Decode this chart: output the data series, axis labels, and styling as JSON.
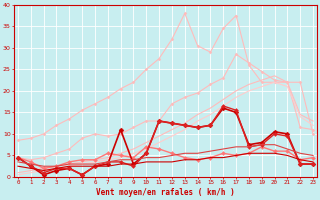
{
  "x": [
    0,
    1,
    2,
    3,
    4,
    5,
    6,
    7,
    8,
    9,
    10,
    11,
    12,
    13,
    14,
    15,
    16,
    17,
    18,
    19,
    20,
    21,
    22,
    23
  ],
  "background_color": "#c8eef0",
  "grid_color": "#ffffff",
  "xlabel": "Vent moyen/en rafales ( km/h )",
  "xlabel_color": "#cc0000",
  "tick_color": "#cc0000",
  "series": [
    {
      "name": "upper_envelope",
      "color": "#ffbbbb",
      "linewidth": 0.8,
      "marker": "D",
      "markersize": 1.5,
      "values": [
        8.5,
        9.0,
        10.0,
        12.0,
        13.5,
        15.5,
        17.0,
        18.5,
        20.5,
        22.0,
        25.0,
        27.5,
        32.0,
        38.0,
        30.5,
        29.0,
        34.5,
        37.5,
        26.0,
        22.0,
        22.0,
        22.0,
        11.5,
        11.0
      ]
    },
    {
      "name": "upper_mid",
      "color": "#ffbbbb",
      "linewidth": 0.8,
      "marker": "D",
      "markersize": 1.5,
      "values": [
        4.5,
        4.0,
        4.5,
        5.5,
        6.5,
        9.0,
        10.0,
        9.5,
        10.0,
        11.5,
        13.0,
        13.0,
        17.0,
        18.5,
        19.5,
        21.5,
        23.0,
        28.5,
        26.5,
        24.5,
        22.5,
        22.0,
        22.0,
        10.0
      ]
    },
    {
      "name": "lower_diag1",
      "color": "#ffbbbb",
      "linewidth": 0.8,
      "marker": null,
      "markersize": 0,
      "values": [
        1.0,
        1.5,
        2.0,
        2.5,
        3.0,
        3.5,
        4.0,
        4.5,
        5.5,
        6.5,
        8.0,
        9.5,
        11.0,
        12.5,
        14.5,
        16.0,
        18.0,
        20.0,
        21.5,
        22.5,
        23.5,
        22.0,
        14.5,
        13.0
      ]
    },
    {
      "name": "lower_diag2",
      "color": "#ffcccc",
      "linewidth": 0.8,
      "marker": null,
      "markersize": 0,
      "values": [
        0.5,
        1.0,
        1.5,
        2.0,
        2.5,
        3.0,
        3.5,
        4.0,
        4.5,
        5.5,
        6.5,
        8.0,
        9.5,
        11.0,
        13.0,
        14.5,
        16.5,
        18.5,
        20.0,
        21.0,
        22.0,
        21.0,
        14.0,
        12.0
      ]
    },
    {
      "name": "mid_red",
      "color": "#ff7777",
      "linewidth": 1.0,
      "marker": "D",
      "markersize": 2.0,
      "values": [
        4.5,
        3.5,
        2.0,
        2.5,
        3.5,
        4.0,
        4.0,
        5.5,
        5.0,
        4.5,
        7.0,
        6.5,
        5.5,
        4.5,
        4.0,
        4.5,
        5.5,
        5.0,
        5.5,
        7.0,
        6.0,
        6.0,
        4.0,
        4.5
      ]
    },
    {
      "name": "dark_red_main",
      "color": "#cc0000",
      "linewidth": 1.2,
      "marker": "D",
      "markersize": 2.5,
      "values": [
        4.5,
        2.5,
        0.5,
        1.5,
        2.0,
        0.5,
        2.5,
        3.0,
        11.0,
        3.0,
        5.5,
        13.0,
        12.5,
        12.0,
        11.5,
        12.0,
        16.0,
        15.0,
        7.5,
        8.0,
        10.5,
        10.0,
        3.0,
        3.0
      ]
    },
    {
      "name": "dark_red2",
      "color": "#dd2222",
      "linewidth": 1.0,
      "marker": "D",
      "markersize": 2.0,
      "values": [
        4.5,
        2.5,
        1.0,
        2.0,
        2.0,
        0.5,
        2.5,
        3.5,
        3.5,
        2.5,
        5.5,
        13.0,
        12.5,
        12.0,
        11.5,
        12.0,
        16.5,
        15.5,
        7.0,
        7.5,
        10.0,
        9.5,
        3.0,
        3.0
      ]
    },
    {
      "name": "flat_bottom1",
      "color": "#cc0000",
      "linewidth": 0.8,
      "marker": null,
      "markersize": 0,
      "values": [
        2.5,
        2.0,
        1.5,
        2.0,
        2.5,
        2.5,
        2.5,
        2.5,
        3.0,
        3.0,
        3.5,
        3.5,
        3.5,
        4.0,
        4.0,
        4.5,
        4.5,
        5.0,
        5.5,
        5.5,
        5.5,
        5.0,
        4.0,
        3.5
      ]
    },
    {
      "name": "flat_bottom2",
      "color": "#dd4444",
      "linewidth": 0.8,
      "marker": null,
      "markersize": 0,
      "values": [
        3.5,
        3.0,
        2.5,
        2.5,
        3.0,
        3.0,
        3.0,
        3.5,
        4.0,
        4.0,
        4.5,
        4.5,
        5.0,
        5.5,
        5.5,
        6.0,
        6.5,
        7.0,
        7.0,
        7.5,
        7.5,
        6.5,
        5.5,
        5.0
      ]
    }
  ],
  "ylim": [
    0,
    40
  ],
  "yticks": [
    0,
    5,
    10,
    15,
    20,
    25,
    30,
    35,
    40
  ],
  "xticks": [
    0,
    1,
    2,
    3,
    4,
    5,
    6,
    7,
    8,
    9,
    10,
    11,
    12,
    13,
    14,
    15,
    16,
    17,
    18,
    19,
    20,
    21,
    22,
    23
  ]
}
